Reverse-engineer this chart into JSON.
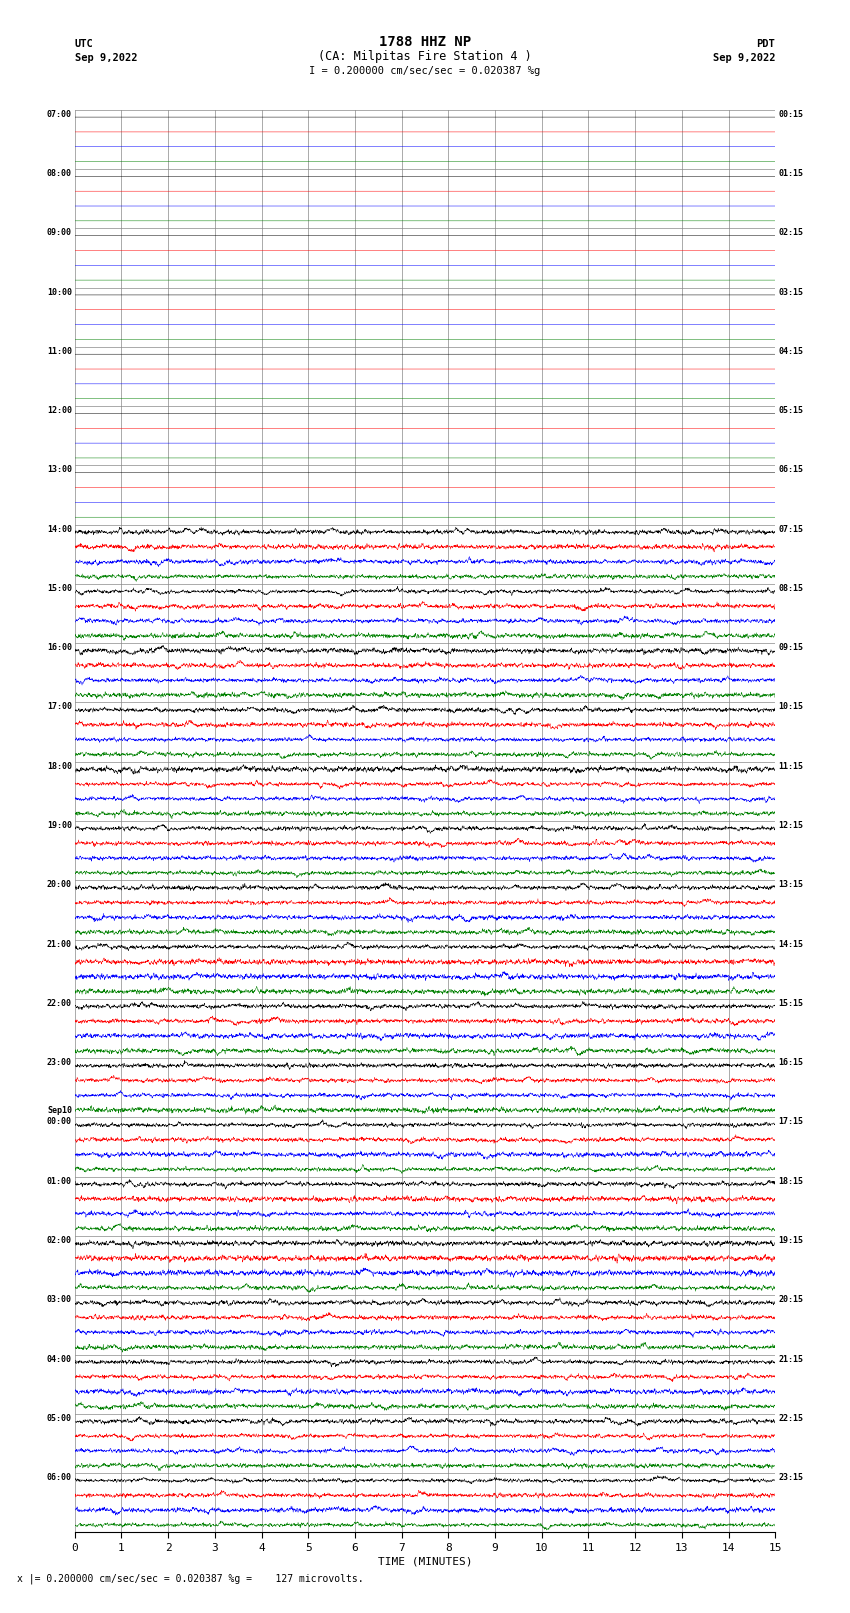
{
  "title_line1": "1788 HHZ NP",
  "title_line2": "(CA: Milpitas Fire Station 4 )",
  "scale_text": "I = 0.200000 cm/sec/sec = 0.020387 %g",
  "xlabel": "TIME (MINUTES)",
  "footer": "x |= 0.200000 cm/sec/sec = 0.020387 %g =    127 microvolts.",
  "left_times": [
    "07:00",
    "08:00",
    "09:00",
    "10:00",
    "11:00",
    "12:00",
    "13:00",
    "14:00",
    "15:00",
    "16:00",
    "17:00",
    "18:00",
    "19:00",
    "20:00",
    "21:00",
    "22:00",
    "23:00",
    "Sep10\n00:00",
    "01:00",
    "02:00",
    "03:00",
    "04:00",
    "05:00",
    "06:00"
  ],
  "right_times": [
    "00:15",
    "01:15",
    "02:15",
    "03:15",
    "04:15",
    "05:15",
    "06:15",
    "07:15",
    "08:15",
    "09:15",
    "10:15",
    "11:15",
    "12:15",
    "13:15",
    "14:15",
    "15:15",
    "16:15",
    "17:15",
    "18:15",
    "19:15",
    "20:15",
    "21:15",
    "22:15",
    "23:15"
  ],
  "n_rows": 24,
  "n_traces_per_row": 4,
  "colors": [
    "black",
    "red",
    "blue",
    "green"
  ],
  "quiet_rows": 7,
  "figsize": [
    8.5,
    16.13
  ],
  "dpi": 100,
  "bg_color": "white",
  "grid_color": "#888888",
  "minutes": 15,
  "samples_per_minute": 200
}
